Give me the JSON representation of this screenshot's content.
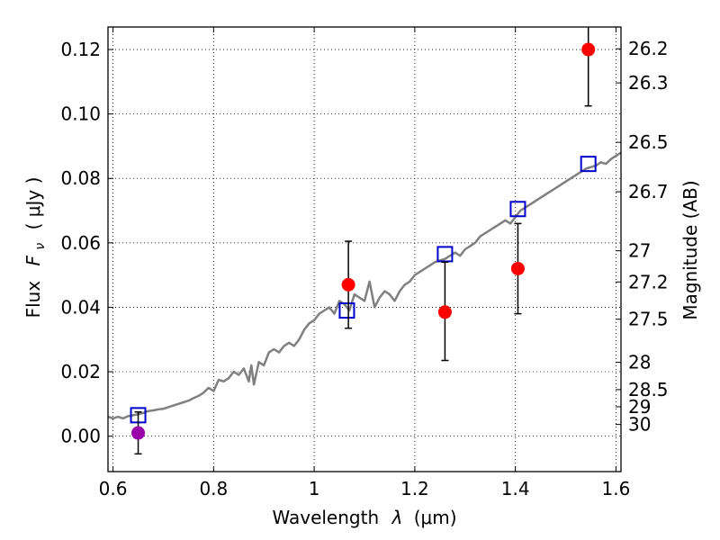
{
  "chart_data": {
    "type": "scatter",
    "xlabel": "Wavelength",
    "xlabel_symbol": "λ",
    "xlabel_unit": "(μm)",
    "ylabel": "Flux",
    "ylabel_symbol": "F",
    "ylabel_sub": "ν",
    "ylabel_unit": "( μJy )",
    "y2label": "Magnitude (AB)",
    "xlim": [
      0.59,
      1.61
    ],
    "ylim": [
      -0.011,
      0.127
    ],
    "grid": true,
    "x_ticks": [
      {
        "v": 0.6,
        "label": "0.6"
      },
      {
        "v": 0.8,
        "label": "0.8"
      },
      {
        "v": 1.0,
        "label": "1"
      },
      {
        "v": 1.2,
        "label": "1.2"
      },
      {
        "v": 1.4,
        "label": "1.4"
      },
      {
        "v": 1.6,
        "label": "1.6"
      }
    ],
    "y_ticks": [
      {
        "v": 0.0,
        "label": "0.00"
      },
      {
        "v": 0.02,
        "label": "0.02"
      },
      {
        "v": 0.04,
        "label": "0.04"
      },
      {
        "v": 0.06,
        "label": "0.06"
      },
      {
        "v": 0.08,
        "label": "0.08"
      },
      {
        "v": 0.1,
        "label": "0.10"
      },
      {
        "v": 0.12,
        "label": "0.12"
      }
    ],
    "y2_ticks": [
      {
        "mag": 26.2,
        "label": "26.2"
      },
      {
        "mag": 26.3,
        "label": "26.3"
      },
      {
        "mag": 26.5,
        "label": "26.5"
      },
      {
        "mag": 26.7,
        "label": "26.7"
      },
      {
        "mag": 27.0,
        "label": "27"
      },
      {
        "mag": 27.2,
        "label": "27.2"
      },
      {
        "mag": 27.5,
        "label": "27.5"
      },
      {
        "mag": 28.0,
        "label": "28"
      },
      {
        "mag": 28.5,
        "label": "28.5"
      },
      {
        "mag": 29.0,
        "label": "29"
      },
      {
        "mag": 30.0,
        "label": "30"
      }
    ],
    "series": [
      {
        "kind": "line",
        "color": "#808080",
        "x": [
          0.59,
          0.6,
          0.61,
          0.62,
          0.63,
          0.64,
          0.65,
          0.66,
          0.67,
          0.68,
          0.69,
          0.7,
          0.71,
          0.72,
          0.73,
          0.74,
          0.75,
          0.76,
          0.77,
          0.78,
          0.79,
          0.8,
          0.81,
          0.82,
          0.83,
          0.84,
          0.85,
          0.86,
          0.87,
          0.875,
          0.88,
          0.89,
          0.9,
          0.91,
          0.92,
          0.93,
          0.94,
          0.95,
          0.96,
          0.97,
          0.98,
          0.99,
          1.0,
          1.01,
          1.02,
          1.03,
          1.04,
          1.05,
          1.06,
          1.07,
          1.08,
          1.09,
          1.1,
          1.11,
          1.12,
          1.13,
          1.14,
          1.15,
          1.16,
          1.17,
          1.18,
          1.19,
          1.2,
          1.21,
          1.22,
          1.23,
          1.24,
          1.25,
          1.26,
          1.27,
          1.28,
          1.29,
          1.3,
          1.31,
          1.32,
          1.33,
          1.34,
          1.35,
          1.36,
          1.37,
          1.38,
          1.39,
          1.4,
          1.41,
          1.42,
          1.43,
          1.44,
          1.45,
          1.46,
          1.47,
          1.48,
          1.49,
          1.5,
          1.51,
          1.52,
          1.53,
          1.54,
          1.55,
          1.56,
          1.57,
          1.58,
          1.59,
          1.6,
          1.61
        ],
        "y": [
          0.006,
          0.0055,
          0.006,
          0.0055,
          0.0062,
          0.0065,
          0.0068,
          0.0072,
          0.0078,
          0.008,
          0.0083,
          0.0085,
          0.009,
          0.0095,
          0.01,
          0.0105,
          0.011,
          0.0118,
          0.0125,
          0.0135,
          0.015,
          0.014,
          0.0175,
          0.017,
          0.018,
          0.02,
          0.019,
          0.021,
          0.017,
          0.022,
          0.016,
          0.023,
          0.022,
          0.026,
          0.027,
          0.026,
          0.028,
          0.029,
          0.028,
          0.03,
          0.033,
          0.035,
          0.036,
          0.038,
          0.039,
          0.04,
          0.038,
          0.042,
          0.041,
          0.039,
          0.044,
          0.043,
          0.042,
          0.048,
          0.04,
          0.043,
          0.045,
          0.044,
          0.042,
          0.045,
          0.047,
          0.048,
          0.05,
          0.051,
          0.052,
          0.053,
          0.054,
          0.0545,
          0.055,
          0.056,
          0.057,
          0.056,
          0.058,
          0.059,
          0.06,
          0.062,
          0.063,
          0.064,
          0.065,
          0.066,
          0.067,
          0.066,
          0.068,
          0.07,
          0.071,
          0.072,
          0.073,
          0.074,
          0.075,
          0.076,
          0.077,
          0.078,
          0.079,
          0.08,
          0.081,
          0.082,
          0.083,
          0.0835,
          0.084,
          0.085,
          0.0845,
          0.086,
          0.087,
          0.088
        ]
      },
      {
        "kind": "points",
        "marker": "open-square",
        "color": "#0000cc",
        "x": [
          0.65,
          1.065,
          1.26,
          1.405,
          1.545
        ],
        "y": [
          0.0065,
          0.039,
          0.0565,
          0.0705,
          0.0845
        ]
      },
      {
        "kind": "points",
        "marker": "filled-circle",
        "color": "#ff0000",
        "x": [
          1.068,
          1.26,
          1.405,
          1.545
        ],
        "y": [
          0.047,
          0.0385,
          0.052,
          0.12
        ],
        "err_low": [
          0.0335,
          0.0235,
          0.038,
          0.1025
        ],
        "err_high": [
          0.0605,
          0.054,
          0.066,
          0.127
        ]
      },
      {
        "kind": "points",
        "marker": "filled-circle",
        "color": "#9900aa",
        "x": [
          0.65
        ],
        "y": [
          0.001
        ],
        "err_low": [
          -0.0055
        ],
        "err_high": [
          0.0075
        ]
      }
    ]
  }
}
